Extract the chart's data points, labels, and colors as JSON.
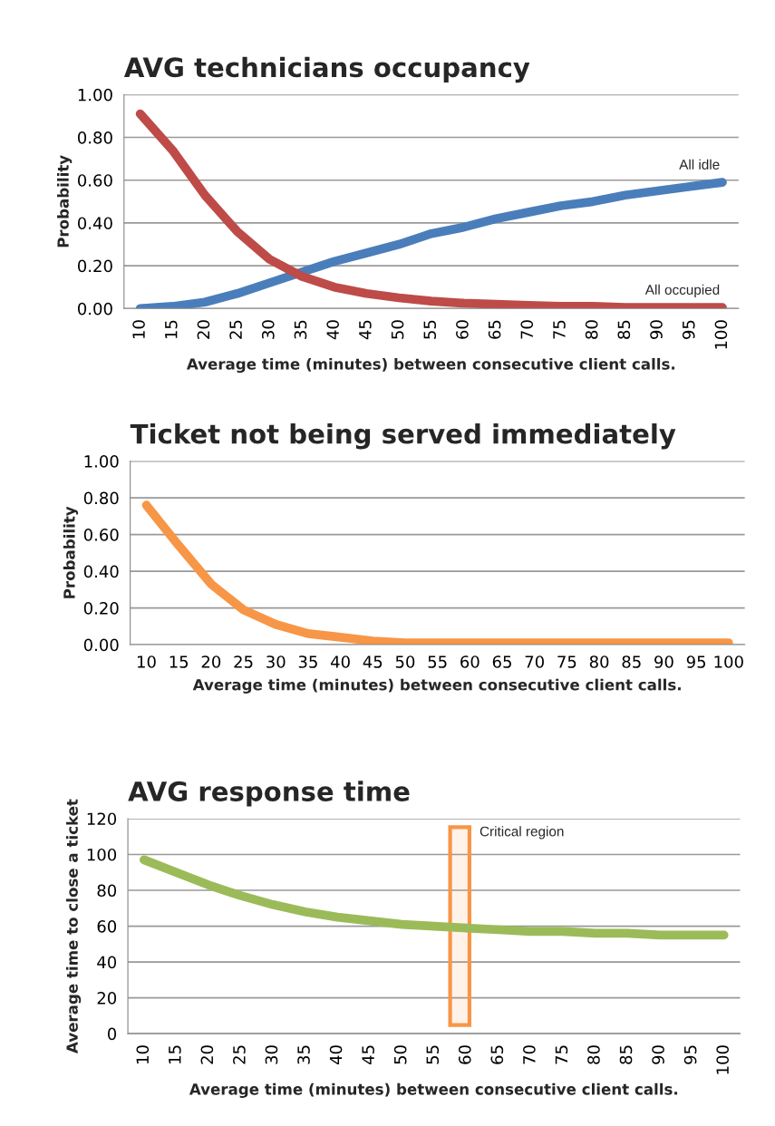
{
  "chart_data": [
    {
      "type": "line",
      "title": "AVG technicians occupancy",
      "xlabel": "Average time (minutes) between consecutive client calls.",
      "ylabel": "Probability",
      "x": [
        10,
        15,
        20,
        25,
        30,
        35,
        40,
        45,
        50,
        55,
        60,
        65,
        70,
        75,
        80,
        85,
        90,
        95,
        100
      ],
      "series": [
        {
          "name": "All idle",
          "color": "#4a7ebb",
          "values": [
            0.0,
            0.01,
            0.03,
            0.07,
            0.12,
            0.17,
            0.22,
            0.26,
            0.3,
            0.35,
            0.38,
            0.42,
            0.45,
            0.48,
            0.5,
            0.53,
            0.55,
            0.57,
            0.59
          ]
        },
        {
          "name": "All occupied",
          "color": "#be4b48",
          "values": [
            0.91,
            0.74,
            0.53,
            0.36,
            0.23,
            0.15,
            0.1,
            0.07,
            0.05,
            0.035,
            0.025,
            0.02,
            0.015,
            0.01,
            0.01,
            0.005,
            0.005,
            0.005,
            0.005
          ]
        }
      ],
      "xlim": [
        7.5,
        102.5
      ],
      "xticks": [
        10,
        15,
        20,
        25,
        30,
        35,
        40,
        45,
        50,
        55,
        60,
        65,
        70,
        75,
        80,
        85,
        90,
        95,
        100
      ],
      "ylim": [
        0,
        1
      ],
      "yticks": [
        {
          "value": 0,
          "label": "0.00"
        },
        {
          "value": 0.2,
          "label": "0.20"
        },
        {
          "value": 0.4,
          "label": "0.40"
        },
        {
          "value": 0.6,
          "label": "0.60"
        },
        {
          "value": 0.8,
          "label": "0.80"
        },
        {
          "value": 1,
          "label": "1.00"
        }
      ],
      "grid": "y",
      "legend": false
    },
    {
      "type": "line",
      "title": "Ticket not being served immediately",
      "xlabel": "Average time (minutes) between consecutive client calls.",
      "ylabel": "Probability",
      "x": [
        10,
        15,
        20,
        25,
        30,
        35,
        40,
        45,
        50,
        55,
        60,
        65,
        70,
        75,
        80,
        85,
        90,
        95,
        100
      ],
      "series": [
        {
          "color": "#f79646",
          "values": [
            0.76,
            0.54,
            0.33,
            0.19,
            0.11,
            0.06,
            0.04,
            0.02,
            0.01,
            0.01,
            0.01,
            0.01,
            0.01,
            0.01,
            0.01,
            0.01,
            0.01,
            0.01,
            0.01
          ]
        }
      ],
      "xlim": [
        7.5,
        102.5
      ],
      "xticks": [
        10,
        15,
        20,
        25,
        30,
        35,
        40,
        45,
        50,
        55,
        60,
        65,
        70,
        75,
        80,
        85,
        90,
        95,
        100
      ],
      "ylim": [
        0,
        1
      ],
      "yticks": [
        {
          "value": 0,
          "label": "0.00"
        },
        {
          "value": 0.2,
          "label": "0.20"
        },
        {
          "value": 0.4,
          "label": "0.40"
        },
        {
          "value": 0.6,
          "label": "0.60"
        },
        {
          "value": 0.8,
          "label": "0.80"
        },
        {
          "value": 1,
          "label": "1.00"
        }
      ],
      "grid": "y",
      "legend": false
    },
    {
      "type": "line",
      "title": "AVG response time",
      "xlabel": "Average time (minutes) between consecutive client calls.",
      "ylabel": "Average time to close a ticket",
      "x": [
        10,
        15,
        20,
        25,
        30,
        35,
        40,
        45,
        50,
        55,
        60,
        65,
        70,
        75,
        80,
        85,
        90,
        95,
        100
      ],
      "series": [
        {
          "color": "#9bbb59",
          "values": [
            97,
            90,
            83,
            77,
            72,
            68,
            65,
            63,
            61,
            60,
            59,
            58,
            57,
            57,
            56,
            56,
            55,
            55,
            55
          ]
        }
      ],
      "xlim": [
        7.5,
        102.5
      ],
      "xticks": [
        10,
        15,
        20,
        25,
        30,
        35,
        40,
        45,
        50,
        55,
        60,
        65,
        70,
        75,
        80,
        85,
        90,
        95,
        100
      ],
      "ylim": [
        0,
        120
      ],
      "yticks": [
        0,
        20,
        40,
        60,
        80,
        100,
        120
      ],
      "bands": [
        {
          "axis": "x",
          "from": 57.5,
          "to": 60.5,
          "label": "Critical region",
          "color": "#f79646"
        }
      ],
      "grid": "y",
      "legend": false
    }
  ]
}
